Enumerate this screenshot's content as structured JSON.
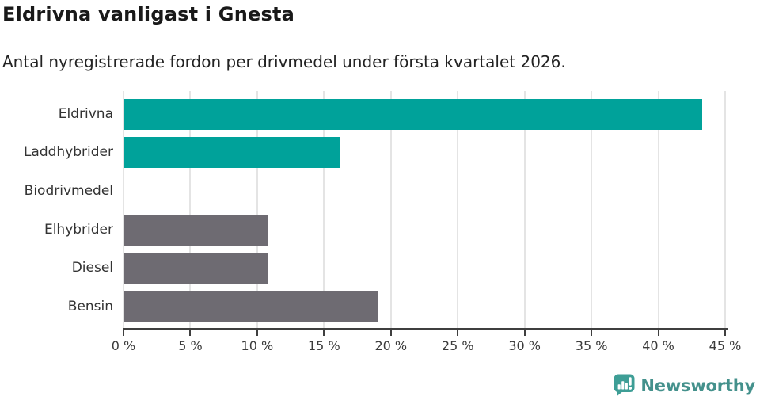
{
  "header": {
    "title": "Eldrivna vanligast i Gnesta",
    "subtitle": "Antal nyregistrerade fordon per drivmedel under första kvartalet 2026."
  },
  "chart_data": {
    "type": "bar",
    "orientation": "horizontal",
    "title": "Eldrivna vanligast i Gnesta",
    "subtitle": "Antal nyregistrerade fordon per drivmedel under första kvartalet 2026.",
    "categories": [
      "Eldrivna",
      "Laddhybrider",
      "Biodrivmedel",
      "Elhybrider",
      "Diesel",
      "Bensin"
    ],
    "values": [
      43.3,
      16.2,
      0,
      10.8,
      10.8,
      19.0
    ],
    "unit": "%",
    "bar_colors": [
      "#00a29a",
      "#00a29a",
      "#00a29a",
      "#6e6b72",
      "#6e6b72",
      "#6e6b72"
    ],
    "xlabel": "",
    "ylabel": "",
    "xlim": [
      0,
      45
    ],
    "xticks": [
      0,
      5,
      10,
      15,
      20,
      25,
      30,
      35,
      40,
      45
    ],
    "xtick_labels": [
      "0 %",
      "5 %",
      "10 %",
      "15 %",
      "20 %",
      "25 %",
      "30 %",
      "35 %",
      "40 %",
      "45 %"
    ],
    "grid": true,
    "legend": "none"
  },
  "style_colors": {
    "teal_accent": "#00a29a",
    "gray_bar": "#6e6b72",
    "gridline": "#e4e4e4",
    "axis": "#3f3f3f"
  },
  "branding": {
    "logo_text": "Newsworthy",
    "logo_icon": "bar-chart-speech-bubble-icon",
    "logo_text_color": "#44918c",
    "logo_icon_color": "#3e9e96"
  }
}
